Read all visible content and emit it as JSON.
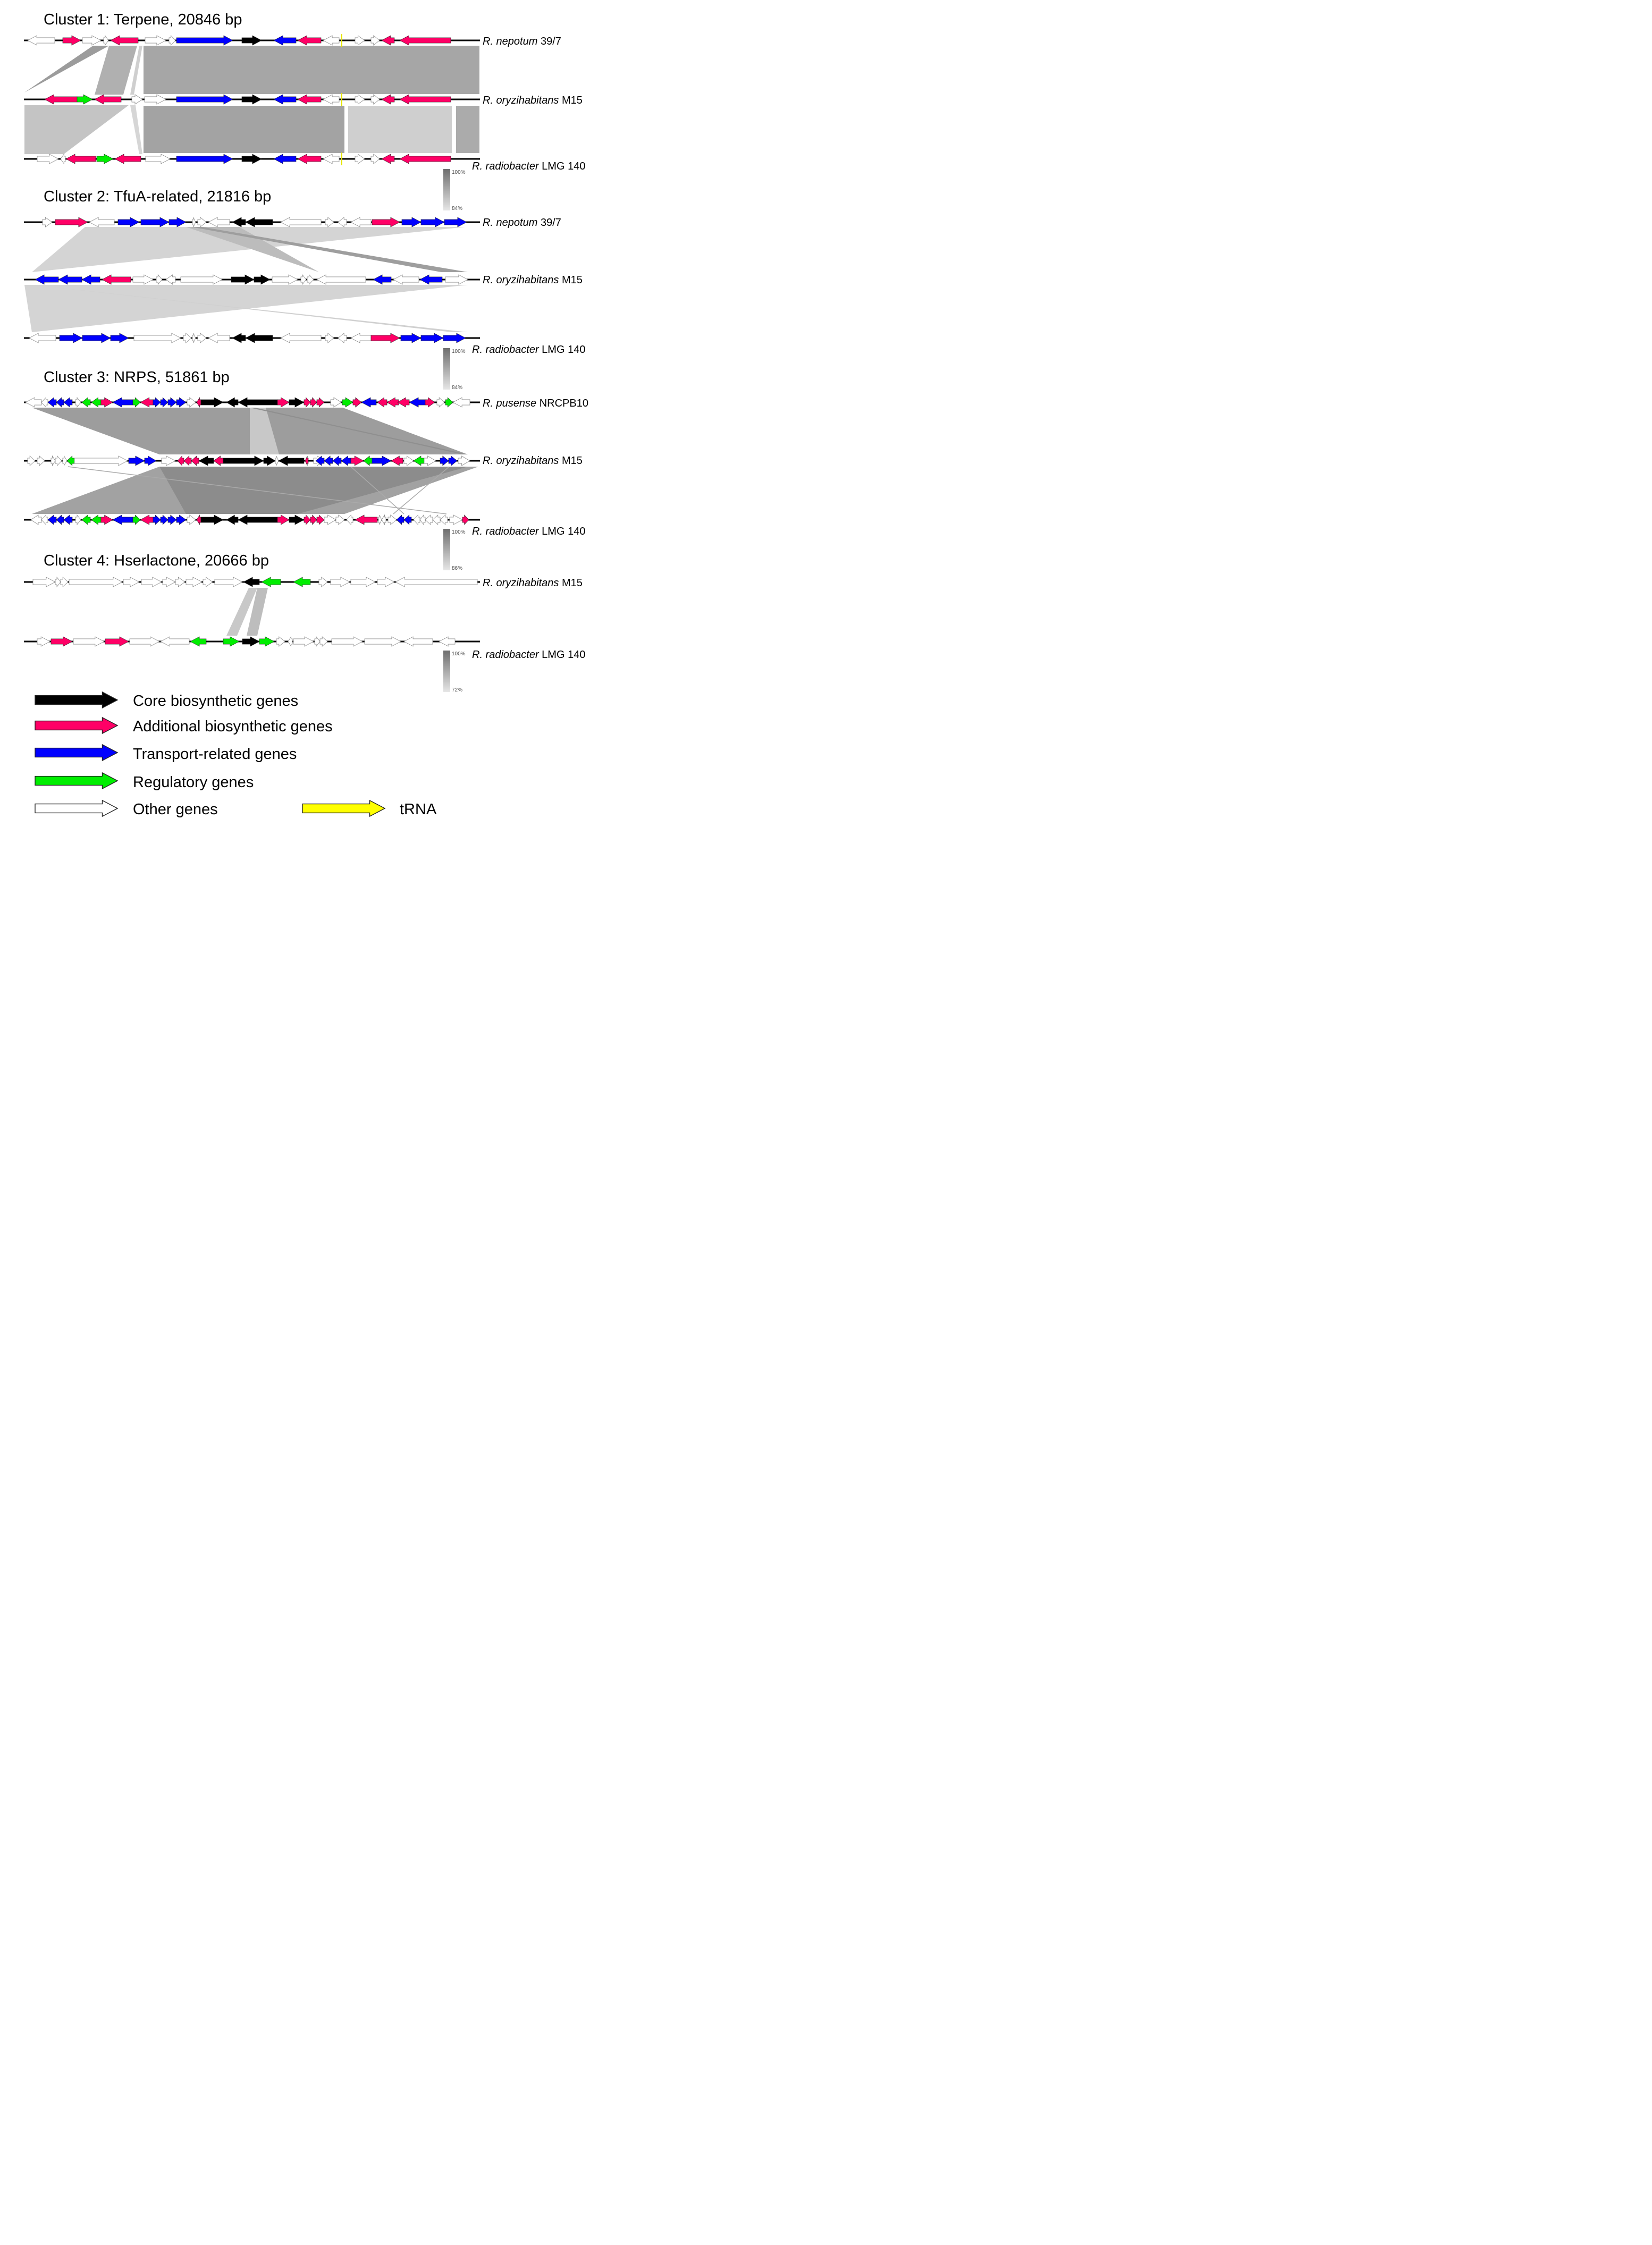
{
  "colors": {
    "core": "#000000",
    "additional": "#ff0066",
    "transport": "#0000ff",
    "regulatory": "#00ee00",
    "other": "#ffffff",
    "trna": "#ffff00",
    "similarity_high": "#7a7a7a",
    "similarity_low": "#e0e0e0"
  },
  "clusters": [
    {
      "title": "Cluster 1: Terpene, 20846 bp",
      "scale": {
        "max": "100%",
        "min": "84%"
      },
      "strains": [
        {
          "species": "R. nepotum",
          "strain": "39/7"
        },
        {
          "species": "R. oryzihabitans",
          "strain": "M15"
        },
        {
          "species": "R. radiobacter",
          "strain": "LMG 140"
        }
      ]
    },
    {
      "title": "Cluster 2: TfuA-related, 21816 bp",
      "scale": {
        "max": "100%",
        "min": "84%"
      },
      "strains": [
        {
          "species": "R. nepotum",
          "strain": "39/7"
        },
        {
          "species": "R. oryzihabitans",
          "strain": "M15"
        },
        {
          "species": "R. radiobacter",
          "strain": "LMG 140"
        }
      ]
    },
    {
      "title": "Cluster 3: NRPS, 51861 bp",
      "scale": {
        "max": "100%",
        "min": "86%"
      },
      "strains": [
        {
          "species": "R. pusense",
          "strain": "NRCPB10"
        },
        {
          "species": "R. oryzihabitans",
          "strain": "M15"
        },
        {
          "species": "R. radiobacter",
          "strain": "LMG 140"
        }
      ]
    },
    {
      "title": "Cluster 4: Hserlactone, 20666 bp",
      "scale": {
        "max": "100%",
        "min": "72%"
      },
      "strains": [
        {
          "species": "R. oryzihabitans",
          "strain": "M15"
        },
        {
          "species": "R. radiobacter",
          "strain": "LMG 140"
        }
      ]
    }
  ],
  "legend": [
    {
      "key": "core",
      "label": "Core biosynthetic genes"
    },
    {
      "key": "additional",
      "label": "Additional biosynthetic genes"
    },
    {
      "key": "transport",
      "label": "Transport-related genes"
    },
    {
      "key": "regulatory",
      "label": "Regulatory genes"
    },
    {
      "key": "other",
      "label": "Other genes"
    },
    {
      "key": "trna",
      "label": "tRNA"
    }
  ]
}
